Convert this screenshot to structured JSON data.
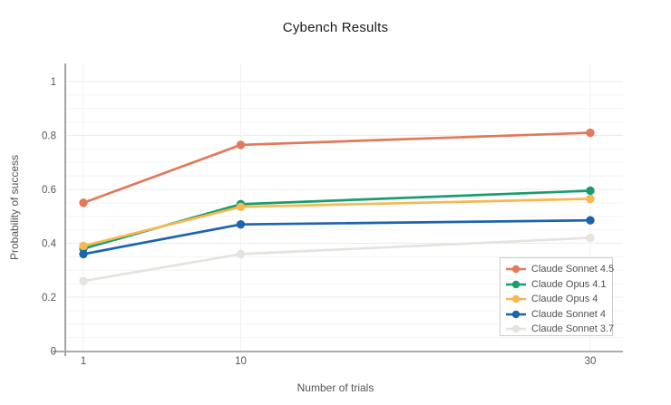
{
  "title": "Cybench Results",
  "chart_data": {
    "type": "line",
    "title": "Cybench Results",
    "xlabel": "Number of trials",
    "ylabel": "Probability of success",
    "x_scale": "linear",
    "x": [
      1,
      10,
      30
    ],
    "x_tick_labels": [
      "1",
      "10",
      "30"
    ],
    "y_ticks": [
      0,
      0.2,
      0.4,
      0.6,
      0.8,
      1
    ],
    "y_tick_labels": [
      "0",
      "0.2",
      "0.4",
      "0.6",
      "0.8",
      "1"
    ],
    "xlim": [
      -0.05,
      31.9
    ],
    "ylim": [
      0,
      1.07
    ],
    "grid": true,
    "minor_grid_step": 0.05,
    "legend_position": "inside-bottom-right",
    "series": [
      {
        "name": "Claude Sonnet 4.5",
        "color": "#E2795B",
        "values": [
          0.55,
          0.765,
          0.81
        ]
      },
      {
        "name": "Claude Opus 4.1",
        "color": "#189D6E",
        "values": [
          0.38,
          0.545,
          0.595
        ]
      },
      {
        "name": "Claude Opus 4",
        "color": "#F8B851",
        "values": [
          0.39,
          0.535,
          0.565
        ]
      },
      {
        "name": "Claude Sonnet 4",
        "color": "#1E63AE",
        "values": [
          0.36,
          0.47,
          0.485
        ]
      },
      {
        "name": "Claude Sonnet 3.7",
        "color": "#E4E4DE",
        "values": [
          0.26,
          0.36,
          0.42
        ]
      }
    ],
    "colors": {
      "background": "#ffffff",
      "title": "#1b1b1b",
      "axis_title": "#555555",
      "tick_label": "#555555",
      "y_axis_line": "#7d7d7d",
      "x_axis_line": "#ababab",
      "grid_minor": "#f4f4f1",
      "grid_major": "#ebebe8",
      "grid_vertical": "#f1f1ee",
      "legend_border": "#cccccc",
      "legend_text": "#515151"
    }
  }
}
